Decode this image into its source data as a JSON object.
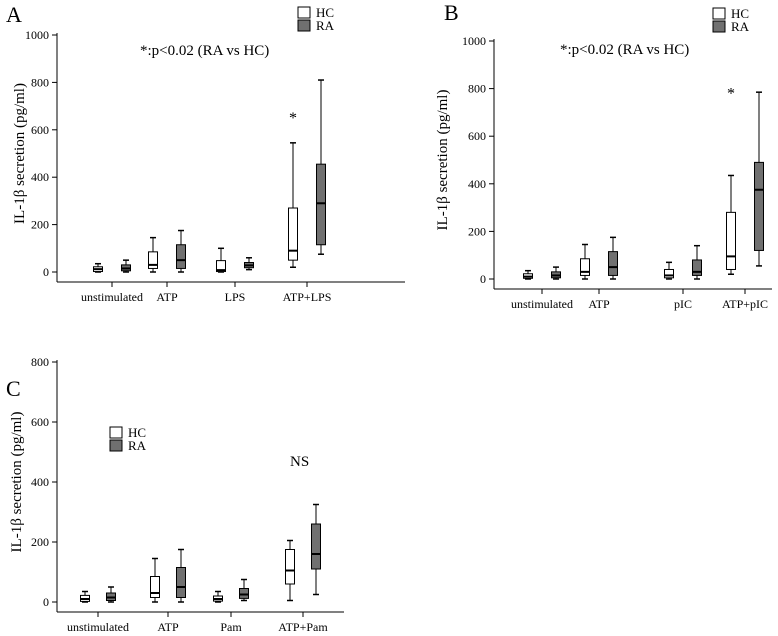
{
  "colors": {
    "hc": "#ffffff",
    "ra": "#707070",
    "stroke": "#000000"
  },
  "chart_data": [
    {
      "type": "boxplot",
      "panel_label": "A",
      "ylabel": "IL-1β secretion (pg/ml)",
      "yticks": [
        0,
        200,
        400,
        600,
        800,
        1000
      ],
      "ylim": [
        0,
        1000
      ],
      "annotation": "*:p<0.02 (RA vs HC)",
      "legend": {
        "items": [
          "HC",
          "RA"
        ],
        "placement": "top-right"
      },
      "categories": [
        "unstimulated",
        "ATP",
        "LPS",
        "ATP+LPS"
      ],
      "series": [
        {
          "name": "HC",
          "boxes": [
            {
              "min": 0,
              "q1": 2,
              "median": 12,
              "q3": 22,
              "max": 35
            },
            {
              "min": 0,
              "q1": 15,
              "median": 30,
              "q3": 85,
              "max": 145
            },
            {
              "min": 0,
              "q1": 2,
              "median": 8,
              "q3": 48,
              "max": 100
            },
            {
              "min": 20,
              "q1": 50,
              "median": 90,
              "q3": 270,
              "max": 545
            }
          ]
        },
        {
          "name": "RA",
          "boxes": [
            {
              "min": 0,
              "q1": 5,
              "median": 15,
              "q3": 30,
              "max": 50
            },
            {
              "min": 0,
              "q1": 15,
              "median": 50,
              "q3": 115,
              "max": 175
            },
            {
              "min": 10,
              "q1": 18,
              "median": 28,
              "q3": 40,
              "max": 60
            },
            {
              "min": 75,
              "q1": 115,
              "median": 290,
              "q3": 455,
              "max": 810
            }
          ]
        }
      ],
      "markers": [
        {
          "category_index": 3,
          "value": 670,
          "text": "*"
        }
      ]
    },
    {
      "type": "boxplot",
      "panel_label": "B",
      "ylabel": "IL-1β secretion (pg/ml)",
      "yticks": [
        0,
        200,
        400,
        600,
        800,
        1000
      ],
      "ylim": [
        0,
        1000
      ],
      "annotation": "*:p<0.02 (RA vs HC)",
      "legend": {
        "items": [
          "HC",
          "RA"
        ],
        "placement": "top-right"
      },
      "categories": [
        "unstimulated",
        "ATP",
        "pIC",
        "ATP+pIC"
      ],
      "series": [
        {
          "name": "HC",
          "boxes": [
            {
              "min": 0,
              "q1": 3,
              "median": 10,
              "q3": 22,
              "max": 35
            },
            {
              "min": 0,
              "q1": 15,
              "median": 30,
              "q3": 85,
              "max": 145
            },
            {
              "min": 0,
              "q1": 5,
              "median": 15,
              "q3": 40,
              "max": 70
            },
            {
              "min": 20,
              "q1": 40,
              "median": 95,
              "q3": 280,
              "max": 435
            }
          ]
        },
        {
          "name": "RA",
          "boxes": [
            {
              "min": 0,
              "q1": 5,
              "median": 15,
              "q3": 30,
              "max": 50
            },
            {
              "min": 0,
              "q1": 15,
              "median": 50,
              "q3": 115,
              "max": 175
            },
            {
              "min": 0,
              "q1": 15,
              "median": 30,
              "q3": 80,
              "max": 140
            },
            {
              "min": 55,
              "q1": 120,
              "median": 375,
              "q3": 490,
              "max": 785
            }
          ]
        }
      ],
      "markers": [
        {
          "category_index": 3,
          "value": 800,
          "text": "*"
        }
      ]
    },
    {
      "type": "boxplot",
      "panel_label": "C",
      "ylabel": "IL-1β secretion (pg/ml)",
      "yticks": [
        0,
        200,
        400,
        600,
        800
      ],
      "ylim": [
        0,
        800
      ],
      "annotation": "NS",
      "legend": {
        "items": [
          "HC",
          "RA"
        ],
        "placement": "top-left"
      },
      "categories": [
        "unstimulated",
        "ATP",
        "Pam",
        "ATP+Pam"
      ],
      "series": [
        {
          "name": "HC",
          "boxes": [
            {
              "min": 0,
              "q1": 2,
              "median": 10,
              "q3": 22,
              "max": 35
            },
            {
              "min": 0,
              "q1": 15,
              "median": 30,
              "q3": 85,
              "max": 145
            },
            {
              "min": 0,
              "q1": 3,
              "median": 10,
              "q3": 20,
              "max": 35
            },
            {
              "min": 5,
              "q1": 60,
              "median": 105,
              "q3": 175,
              "max": 205
            }
          ]
        },
        {
          "name": "RA",
          "boxes": [
            {
              "min": 0,
              "q1": 5,
              "median": 15,
              "q3": 30,
              "max": 50
            },
            {
              "min": 0,
              "q1": 15,
              "median": 50,
              "q3": 115,
              "max": 175
            },
            {
              "min": 5,
              "q1": 12,
              "median": 25,
              "q3": 45,
              "max": 75
            },
            {
              "min": 25,
              "q1": 110,
              "median": 160,
              "q3": 260,
              "max": 325
            }
          ]
        }
      ],
      "markers": []
    }
  ]
}
